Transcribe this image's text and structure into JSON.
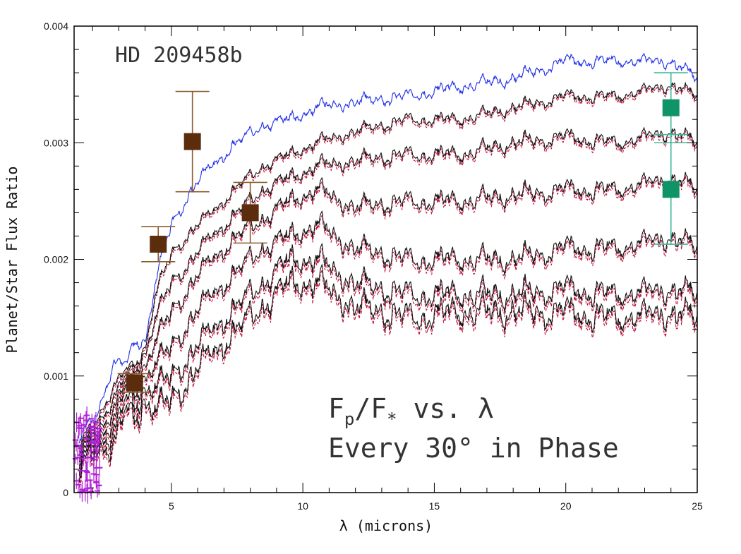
{
  "chart_data": {
    "type": "line",
    "title": "HD 209458b",
    "xlabel": "λ (microns)",
    "ylabel": "Planet/Star Flux Ratio",
    "xlim": [
      1.3,
      25
    ],
    "ylim": [
      0,
      0.004
    ],
    "x_ticks": [
      5,
      10,
      15,
      20,
      25
    ],
    "x_tick_labels": [
      "5",
      "10",
      "15",
      "20",
      "25"
    ],
    "y_ticks": [
      0,
      0.001,
      0.002,
      0.003,
      0.004
    ],
    "y_tick_labels": [
      "0",
      "0.001",
      "0.002",
      "0.003",
      "0.004"
    ],
    "annotation": {
      "line1": {
        "f1": "F",
        "sub": "p",
        "slash": "/F",
        "sup": "*",
        "rest": " vs. λ"
      },
      "line2": "Every 30° in Phase"
    },
    "colors": {
      "blue_model": "#1f2ee8",
      "black_model": "#111111",
      "red_model": "#c0143c",
      "brown_points": "#5c2d0c",
      "brown_errorbars": "#8b5a2b",
      "green_points": "#0e9466",
      "green_errorbars": "#3fb89a",
      "magenta_points": "#b01fd6"
    },
    "model_continuum_points": {
      "x": [
        1.5,
        2.2,
        2.8,
        3.3,
        3.6,
        4.0,
        4.4,
        5.0,
        5.8,
        6.5,
        7.5,
        8.5,
        9.5,
        10.5,
        12,
        14,
        16,
        18,
        20,
        22,
        24,
        25
      ],
      "series": [
        {
          "name": "phase 0° (blue)",
          "values": [
            0.00045,
            0.0007,
            0.0011,
            0.0011,
            0.0013,
            0.0013,
            0.0018,
            0.0023,
            0.0026,
            0.0028,
            0.003,
            0.00315,
            0.0032,
            0.0033,
            0.00335,
            0.0034,
            0.00348,
            0.00355,
            0.0037,
            0.0037,
            0.0037,
            0.00355
          ]
        },
        {
          "name": "phase 30°",
          "values": [
            0.0004,
            0.00065,
            0.0009,
            0.00105,
            0.0011,
            0.00125,
            0.0017,
            0.00205,
            0.00225,
            0.0024,
            0.00262,
            0.0028,
            0.0029,
            0.003,
            0.0031,
            0.0032,
            0.0032,
            0.0033,
            0.0034,
            0.0034,
            0.0035,
            0.0034
          ]
        },
        {
          "name": "phase 60°",
          "values": [
            0.00035,
            0.0006,
            0.0008,
            0.001,
            0.00105,
            0.0012,
            0.0015,
            0.0018,
            0.002,
            0.0022,
            0.0024,
            0.0026,
            0.0027,
            0.0028,
            0.00285,
            0.0029,
            0.0029,
            0.003,
            0.00305,
            0.003,
            0.0031,
            0.003
          ]
        },
        {
          "name": "phase 90°",
          "values": [
            0.0003,
            0.00055,
            0.0007,
            0.00095,
            0.00095,
            0.0011,
            0.0013,
            0.00155,
            0.0018,
            0.002,
            0.0022,
            0.00235,
            0.0025,
            0.0026,
            0.00245,
            0.0025,
            0.0025,
            0.00255,
            0.0026,
            0.0026,
            0.0027,
            0.0026
          ]
        },
        {
          "name": "phase 120°",
          "values": [
            0.00025,
            0.0005,
            0.0006,
            0.0009,
            0.00085,
            0.001,
            0.0011,
            0.00125,
            0.0015,
            0.0017,
            0.0019,
            0.0021,
            0.0022,
            0.0023,
            0.0021,
            0.002,
            0.002,
            0.002,
            0.0021,
            0.0021,
            0.0022,
            0.0021
          ]
        },
        {
          "name": "phase 150°",
          "values": [
            0.0002,
            0.00045,
            0.0005,
            0.0008,
            0.00075,
            0.0009,
            0.0009,
            0.001,
            0.0012,
            0.0014,
            0.0016,
            0.0018,
            0.002,
            0.002,
            0.0018,
            0.0017,
            0.0017,
            0.0017,
            0.00175,
            0.0017,
            0.00175,
            0.0017
          ]
        },
        {
          "name": "phase 180°",
          "values": [
            0.00015,
            0.0004,
            0.0004,
            0.0007,
            0.00065,
            0.0008,
            0.0007,
            0.0008,
            0.001,
            0.0012,
            0.0014,
            0.0016,
            0.0018,
            0.0018,
            0.0016,
            0.0015,
            0.00155,
            0.00155,
            0.00155,
            0.0015,
            0.00155,
            0.0015
          ]
        }
      ]
    },
    "observations": {
      "brown": [
        {
          "x": 3.6,
          "y": 0.00094,
          "yerr": 8e-05
        },
        {
          "x": 4.5,
          "y": 0.00213,
          "yerr": 0.00015
        },
        {
          "x": 5.8,
          "y": 0.00301,
          "yerr": 0.00043
        },
        {
          "x": 8.0,
          "y": 0.0024,
          "yerr": 0.00026
        }
      ],
      "green": [
        {
          "x": 24.0,
          "y": 0.0033,
          "yerr": 0.0003
        },
        {
          "x": 24.0,
          "y": 0.0026,
          "yerr": 0.00047
        }
      ],
      "magenta_range_x": [
        1.35,
        2.3
      ],
      "magenta_range_y": [
        0.0,
        0.0009
      ]
    }
  }
}
